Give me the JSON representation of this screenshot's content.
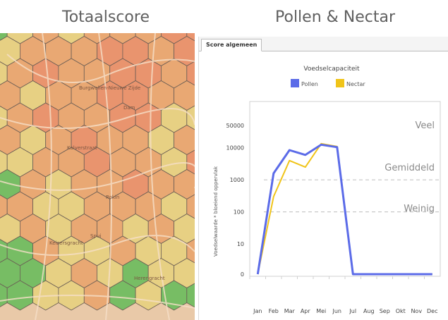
{
  "titles": {
    "left": "Totaalscore",
    "right": "Pollen & Nectar"
  },
  "map": {
    "labels": [
      "Burgwallen-Nieuwe Zijde",
      "Dam",
      "Rokin",
      "Kalverstraat",
      "Keizersgracht",
      "Spui",
      "Herengracht"
    ]
  },
  "tabs": [
    {
      "label": "Score algemeen"
    }
  ],
  "chart_data": {
    "type": "line",
    "title": "Voedselcapaciteit",
    "ylabel": "Voedselwaarde * bloeiend oppervlak",
    "yscale": "log",
    "categories": [
      "Jan",
      "Feb",
      "Mar",
      "Apr",
      "Mei",
      "Jun",
      "Jul",
      "Aug",
      "Sep",
      "Okt",
      "Nov",
      "Dec"
    ],
    "yticks": [
      "50000",
      "10000",
      "1000",
      "100",
      "10",
      "0"
    ],
    "series": [
      {
        "name": "Pollen",
        "color": "#5b6be8",
        "values": [
          0,
          1600,
          8500,
          6000,
          12500,
          10500,
          0,
          0,
          0,
          0,
          0,
          0
        ]
      },
      {
        "name": "Nectar",
        "color": "#f0c419",
        "values": [
          0,
          300,
          4000,
          2500,
          13500,
          11000,
          0,
          0,
          0,
          0,
          0,
          0
        ]
      }
    ],
    "bands": [
      "Veel",
      "Gemiddeld",
      "Weinig"
    ],
    "legend_position": "top-center",
    "grid": false
  },
  "colors": {
    "red": "#e9946e",
    "orange": "#e9a873",
    "yellow": "#e7d083",
    "green": "#77bd64"
  }
}
